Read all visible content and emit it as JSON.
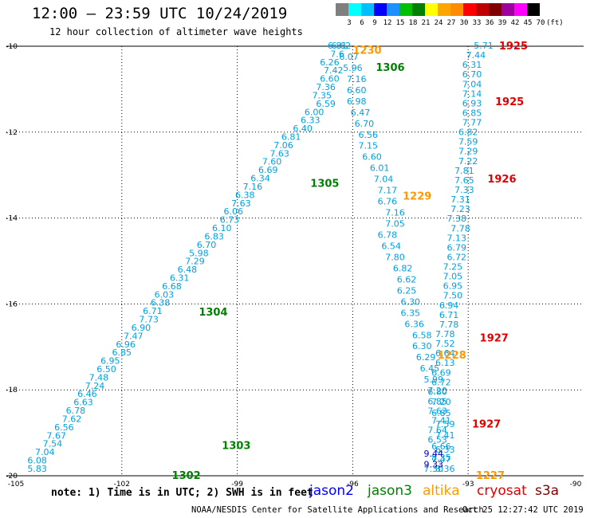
{
  "header": {
    "title": "12:00 – 23:59 UTC 10/24/2019",
    "subtitle": "12 hour collection of altimeter wave heights"
  },
  "scale": {
    "colors": [
      "#7f7f7f",
      "#00ffff",
      "#00bfff",
      "#0000ff",
      "#1e90ff",
      "#00c000",
      "#008000",
      "#ffff00",
      "#ffa500",
      "#ff8c00",
      "#ff0000",
      "#c00000",
      "#800000",
      "#a000a0",
      "#ff00ff",
      "#000000"
    ],
    "labels": [
      "3",
      "6",
      "9",
      "12",
      "15",
      "18",
      "21",
      "24",
      "27",
      "30",
      "33",
      "36",
      "39",
      "42",
      "45",
      "70",
      "(ft)"
    ]
  },
  "chart_data": {
    "type": "scatter",
    "xlim": [
      -105,
      -90
    ],
    "ylim": [
      -20,
      -10
    ],
    "x_ticks": [
      "-105",
      "-102",
      "-99",
      "-96",
      "-93",
      "-90"
    ],
    "y_ticks": [
      "-10",
      "-12",
      "-14",
      "-16",
      "-18",
      "-20"
    ],
    "grid": "dotted",
    "tracks": [
      {
        "name": "jason3",
        "color": "#00a0e0",
        "x": [
          -96.4,
          -96.4,
          -96.6,
          -96.5,
          -96.6,
          -96.7,
          -96.8,
          -96.7,
          -97.0,
          -97.1,
          -97.3,
          -97.6,
          -97.8,
          -97.9,
          -98.1,
          -98.2,
          -98.4,
          -98.6,
          -98.8,
          -98.9,
          -99.1,
          -99.2,
          -99.4,
          -99.6,
          -99.8,
          -100.0,
          -100.1,
          -100.3,
          -100.5,
          -100.7,
          -100.9,
          -101.0,
          -101.2,
          -101.3,
          -101.5,
          -101.7,
          -101.9,
          -102.0,
          -102.3,
          -102.4,
          -102.6,
          -102.7,
          -102.9,
          -103.0,
          -103.2,
          -103.3,
          -103.5,
          -103.7,
          -103.8,
          -104.0,
          -104.2,
          -104.2
        ],
        "labels": [
          "6.81",
          "7.6",
          "6.26",
          "7.42",
          "6.60",
          "7.36",
          "7.35",
          "6.59",
          "6.00",
          "6.33",
          "6.40",
          "6.81",
          "7.06",
          "7.63",
          "7.60",
          "6.69",
          "6.34",
          "7.16",
          "6.38",
          "7.63",
          "6.06",
          "6.73",
          "6.10",
          "6.83",
          "6.70",
          "5.98",
          "7.29",
          "6.48",
          "6.31",
          "6.68",
          "6.03",
          "6.38",
          "6.71",
          "7.73",
          "6.90",
          "7.47",
          "6.96",
          "6.85",
          "6.95",
          "6.50",
          "7.48",
          "7.24",
          "6.46",
          "6.63",
          "6.78",
          "7.62",
          "6.56",
          "7.67",
          "7.54",
          "7.04",
          "6.08",
          "5.83"
        ]
      },
      {
        "name": "jason3",
        "color": "#00a0e0",
        "x": [
          -96.3,
          -96.1,
          -96.0,
          -95.9,
          -95.9,
          -95.9,
          -95.8,
          -95.7,
          -95.6,
          -95.6,
          -95.5,
          -95.3,
          -95.2,
          -95.1,
          -95.1,
          -94.9,
          -94.9,
          -95.1,
          -95.0,
          -94.9,
          -94.7,
          -94.6,
          -94.6,
          -94.5,
          -94.5,
          -94.4,
          -94.2,
          -94.2,
          -94.1,
          -94.0,
          -93.9,
          -93.8,
          -93.7,
          -93.7,
          -93.6,
          -93.6,
          -93.7,
          -93.7,
          -93.6
        ],
        "labels": [
          "6.62",
          "6.07",
          "5.96",
          "7.16",
          "6.60",
          "6.98",
          "6.47",
          "6.70",
          "6.56",
          "7.15",
          "6.60",
          "6.01",
          "7.04",
          "7.17",
          "6.76",
          "7.16",
          "7.05",
          "6.78",
          "6.54",
          "7.80",
          "6.82",
          "6.62",
          "6.25",
          "6.30",
          "6.35",
          "6.36",
          "6.58",
          "6.30",
          "6.29",
          "6.45",
          "5.99",
          "7.20",
          "7.20",
          "6.85",
          "7.59",
          "7.41",
          "6.66",
          "8.35",
          "8.36"
        ]
      },
      {
        "name": "jason3",
        "color": "#00a0e0",
        "x": [
          -92.6,
          -92.8,
          -92.9,
          -92.9,
          -92.9,
          -92.9,
          -92.9,
          -92.9,
          -92.9,
          -93.0,
          -93.0,
          -93.0,
          -93.0,
          -93.1,
          -93.1,
          -93.1,
          -93.2,
          -93.2,
          -93.3,
          -93.2,
          -93.3,
          -93.3,
          -93.3,
          -93.4,
          -93.4,
          -93.4,
          -93.4,
          -93.5,
          -93.5,
          -93.5,
          -93.6,
          -93.6,
          -93.6,
          -93.6,
          -93.7,
          -93.7,
          -93.8,
          -93.8,
          -93.8,
          -93.7,
          -93.8,
          -93.8,
          -93.6,
          -93.7,
          -93.9
        ],
        "labels": [
          "5.71",
          "7.44",
          "6.31",
          "6.70",
          "7.04",
          "7.14",
          "6.93",
          "6.85",
          "7.77",
          "6.82",
          "7.59",
          "7.29",
          "7.22",
          "7.81",
          "7.65",
          "7.33",
          "7.31",
          "7.23",
          "7.38",
          "7.78",
          "7.13",
          "6.79",
          "6.72",
          "7.25",
          "7.05",
          "6.95",
          "7.50",
          "6.94",
          "6.71",
          "7.78",
          "7.78",
          "7.52",
          "6.64",
          "6.13",
          "6.69",
          "6.72",
          "6.80",
          "6.85",
          "7.63",
          "7.41",
          "7.64",
          "6.53",
          "6.33",
          "7.47",
          "7.30"
        ]
      },
      {
        "name": "jason2",
        "color": "#0000c0",
        "x": [
          -93.9,
          -93.9
        ],
        "labels": [
          "9.44",
          "9.33"
        ]
      }
    ],
    "pass_labels": [
      {
        "text": "1230",
        "color": "#ff9900",
        "x": -96.0,
        "y": -10.1
      },
      {
        "text": "1306",
        "color": "#008000",
        "x": -95.4,
        "y": -10.5
      },
      {
        "text": "1925",
        "color": "#e00000",
        "x": -92.2,
        "y": -10.0
      },
      {
        "text": "1925",
        "color": "#e00000",
        "x": -92.3,
        "y": -11.3
      },
      {
        "text": "1305",
        "color": "#008000",
        "x": -97.1,
        "y": -13.2
      },
      {
        "text": "1229",
        "color": "#ff9900",
        "x": -94.7,
        "y": -13.5
      },
      {
        "text": "1926",
        "color": "#e00000",
        "x": -92.5,
        "y": -13.1
      },
      {
        "text": "1304",
        "color": "#008000",
        "x": -100.0,
        "y": -16.2
      },
      {
        "text": "1927",
        "color": "#e00000",
        "x": -92.7,
        "y": -16.8
      },
      {
        "text": "1228",
        "color": "#ff9900",
        "x": -93.8,
        "y": -17.2
      },
      {
        "text": "1927",
        "color": "#e00000",
        "x": -92.9,
        "y": -18.8
      },
      {
        "text": "1303",
        "color": "#008000",
        "x": -99.4,
        "y": -19.3
      },
      {
        "text": "1302",
        "color": "#008000",
        "x": -100.7,
        "y": -20.0
      },
      {
        "text": "1227",
        "color": "#ff9900",
        "x": -92.8,
        "y": -20.0
      }
    ]
  },
  "footer": {
    "note": "note: 1) Time is in UTC; 2) SWH is in feet",
    "legend": [
      {
        "label": "jason2",
        "color": "#0000ff"
      },
      {
        "label": "jason3",
        "color": "#008000"
      },
      {
        "label": "altika",
        "color": "#ff9900"
      },
      {
        "label": "cryosat",
        "color": "#e00000"
      },
      {
        "label": "s3a",
        "color": "#800000"
      }
    ],
    "credit": "NOAA/NESDIS Center for Satellite Applications and Research",
    "timestamp": "Oct 25 12:27:42 UTC 2019"
  }
}
